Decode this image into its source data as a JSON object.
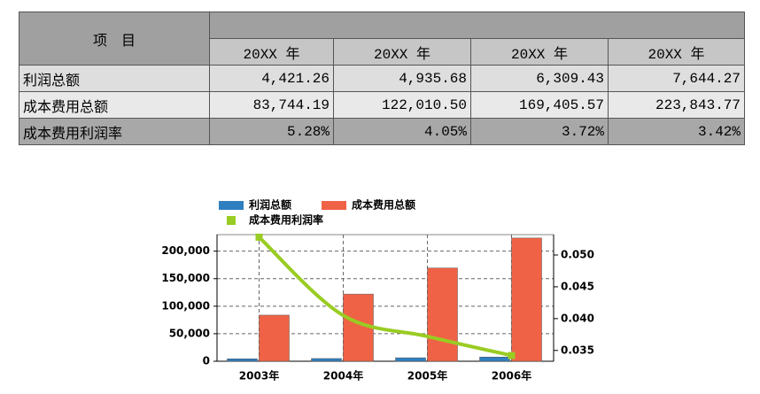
{
  "table": {
    "header": {
      "item": "项　目",
      "years": [
        "20XX 年",
        "20XX 年",
        "20XX 年",
        "20XX 年"
      ]
    },
    "rows": [
      [
        "利润总额",
        "4,421.26",
        "4,935.68",
        "6,309.43",
        "7,644.27"
      ],
      [
        "成本费用总额",
        "83,744.19",
        "122,010.50",
        "169,405.57",
        "223,843.77"
      ],
      [
        "成本费用利润率",
        "5.28%",
        "4.05%",
        "3.72%",
        "3.42%"
      ]
    ]
  },
  "chart_data": {
    "type": "bar-line",
    "categories": [
      "2003年",
      "2004年",
      "2005年",
      "2006年"
    ],
    "series": [
      {
        "name": "利润总额",
        "color": "#2e7fc0",
        "type": "bar",
        "values": [
          4421.26,
          4935.68,
          6309.43,
          7644.27
        ]
      },
      {
        "name": "成本费用总额",
        "color": "#f06245",
        "type": "bar",
        "values": [
          83744.19,
          122010.5,
          169405.57,
          223843.77
        ]
      },
      {
        "name": "成本费用利润率",
        "color": "#99cc22",
        "type": "line",
        "axis": "y2",
        "values": [
          0.0528,
          0.0405,
          0.0372,
          0.0342
        ]
      }
    ],
    "ylim": [
      0,
      230000
    ],
    "yticks": [
      0,
      {
        "value": 50000,
        "label": "50,000"
      },
      {
        "value": 100000,
        "label": "100,000"
      },
      {
        "value": 150000,
        "label": "150,000"
      },
      {
        "value": 200000,
        "label": "200,000"
      }
    ],
    "y2lim": [
      0.0333,
      0.0532
    ],
    "y2ticks": [
      {
        "value": 0.035,
        "label": "0.035"
      },
      {
        "value": 0.04,
        "label": "0.040"
      },
      {
        "value": 0.045,
        "label": "0.045"
      },
      {
        "value": 0.05,
        "label": "0.050"
      }
    ],
    "grid": true
  }
}
